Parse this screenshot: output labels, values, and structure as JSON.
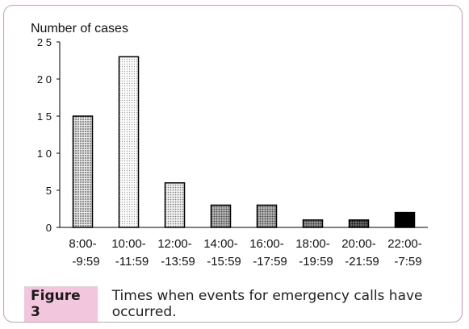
{
  "figure": {
    "label": "Figure 3",
    "caption": "Times when events for emergency calls have occurred."
  },
  "chart_data": {
    "type": "bar",
    "ylabel": "Number of cases",
    "xlabel": "",
    "ylim": [
      0,
      25
    ],
    "yticks": [
      0,
      5,
      10,
      15,
      20,
      25
    ],
    "categories": [
      [
        "8:00-",
        "-9:59"
      ],
      [
        "10:00-",
        "-11:59"
      ],
      [
        "12:00-",
        "-13:59"
      ],
      [
        "14:00-",
        "-15:59"
      ],
      [
        "16:00-",
        "-17:59"
      ],
      [
        "18:00-",
        "-19:59"
      ],
      [
        "20:00-",
        "-21:59"
      ],
      [
        "22:00-",
        "-7:59"
      ]
    ],
    "values": [
      15,
      23,
      6,
      3,
      3,
      1,
      1,
      2
    ],
    "bar_patterns": [
      "dots-dense",
      "dots-light",
      "dots-medium",
      "dots-dark",
      "dots-dark",
      "dots-darker",
      "dots-darkest",
      "solid-black"
    ]
  }
}
